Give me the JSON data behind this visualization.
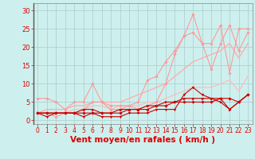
{
  "background_color": "#cdf0ee",
  "grid_color": "#aacccc",
  "xlabel": "Vent moyen/en rafales ( km/h )",
  "xlabel_color": "#dd0000",
  "xlabel_fontsize": 7.5,
  "tick_color": "#dd0000",
  "ylim": [
    -1,
    32
  ],
  "xlim": [
    -0.5,
    23.5
  ],
  "yticks": [
    0,
    5,
    10,
    15,
    20,
    25,
    30
  ],
  "xticks": [
    0,
    1,
    2,
    3,
    4,
    5,
    6,
    7,
    8,
    9,
    10,
    11,
    12,
    13,
    14,
    15,
    16,
    17,
    18,
    19,
    20,
    21,
    22,
    23
  ],
  "series": [
    {
      "x": [
        0,
        1,
        2,
        3,
        4,
        5,
        6,
        7,
        8,
        9,
        10,
        11,
        12,
        13,
        14,
        15,
        16,
        17,
        18,
        19,
        20,
        21,
        22,
        23
      ],
      "y": [
        2,
        3,
        3,
        3,
        4,
        4,
        5,
        5,
        5,
        5,
        6,
        7,
        8,
        9,
        10,
        12,
        14,
        16,
        17,
        18,
        19,
        21,
        17,
        21
      ],
      "color": "#ffaaaa",
      "linewidth": 0.9,
      "marker": null,
      "markersize": 0,
      "alpha": 1.0
    },
    {
      "x": [
        0,
        1,
        2,
        3,
        4,
        5,
        6,
        7,
        8,
        9,
        10,
        11,
        12,
        13,
        14,
        15,
        16,
        17,
        18,
        19,
        20,
        21,
        22,
        23
      ],
      "y": [
        2,
        2,
        2,
        2,
        3,
        3,
        4,
        4,
        3,
        4,
        4,
        4,
        5,
        5,
        6,
        7,
        8,
        9,
        9,
        9,
        10,
        11,
        8,
        12
      ],
      "color": "#ffbbbb",
      "linewidth": 0.9,
      "marker": null,
      "markersize": 0,
      "alpha": 1.0
    },
    {
      "x": [
        0,
        1,
        2,
        3,
        4,
        5,
        6,
        7,
        8,
        9,
        10,
        11,
        12,
        13,
        14,
        15,
        16,
        17,
        18,
        19,
        20,
        21,
        22,
        23
      ],
      "y": [
        6,
        6,
        5,
        3,
        5,
        5,
        10,
        5,
        3,
        3,
        4,
        5,
        11,
        12,
        16,
        19,
        23,
        24,
        21,
        14,
        21,
        26,
        19,
        24
      ],
      "color": "#ff9999",
      "linewidth": 0.8,
      "marker": "D",
      "markersize": 1.8,
      "alpha": 1.0
    },
    {
      "x": [
        0,
        1,
        2,
        3,
        4,
        5,
        6,
        7,
        8,
        9,
        10,
        11,
        12,
        13,
        14,
        15,
        16,
        17,
        18,
        19,
        20,
        21,
        22,
        23
      ],
      "y": [
        2,
        2,
        1,
        2,
        2,
        3,
        5,
        5,
        4,
        4,
        4,
        3,
        4,
        5,
        10,
        18,
        23,
        29,
        21,
        21,
        26,
        13,
        25,
        25
      ],
      "color": "#ff9999",
      "linewidth": 0.8,
      "marker": "D",
      "markersize": 1.8,
      "alpha": 1.0
    },
    {
      "x": [
        0,
        1,
        2,
        3,
        4,
        5,
        6,
        7,
        8,
        9,
        10,
        11,
        12,
        13,
        14,
        15,
        16,
        17,
        18,
        19,
        20,
        21,
        22,
        23
      ],
      "y": [
        2,
        2,
        2,
        2,
        2,
        2,
        2,
        2,
        2,
        2,
        3,
        3,
        3,
        4,
        4,
        5,
        5,
        5,
        5,
        5,
        6,
        6,
        5,
        7
      ],
      "color": "#cc0000",
      "linewidth": 0.8,
      "marker": "D",
      "markersize": 1.8,
      "alpha": 1.0
    },
    {
      "x": [
        0,
        1,
        2,
        3,
        4,
        5,
        6,
        7,
        8,
        9,
        10,
        11,
        12,
        13,
        14,
        15,
        16,
        17,
        18,
        19,
        20,
        21,
        22,
        23
      ],
      "y": [
        2,
        1,
        2,
        2,
        2,
        1,
        2,
        1,
        1,
        1,
        2,
        2,
        2,
        3,
        3,
        3,
        7,
        9,
        7,
        6,
        6,
        3,
        5,
        7
      ],
      "color": "#cc0000",
      "linewidth": 0.8,
      "marker": "v",
      "markersize": 2.0,
      "alpha": 1.0
    },
    {
      "x": [
        0,
        1,
        2,
        3,
        4,
        5,
        6,
        7,
        8,
        9,
        10,
        11,
        12,
        13,
        14,
        15,
        16,
        17,
        18,
        19,
        20,
        21,
        22,
        23
      ],
      "y": [
        2,
        2,
        2,
        2,
        2,
        3,
        3,
        2,
        2,
        3,
        3,
        3,
        4,
        4,
        5,
        5,
        6,
        6,
        6,
        6,
        5,
        3,
        5,
        7
      ],
      "color": "#cc0000",
      "linewidth": 0.8,
      "marker": ">",
      "markersize": 2.0,
      "alpha": 1.0
    }
  ]
}
